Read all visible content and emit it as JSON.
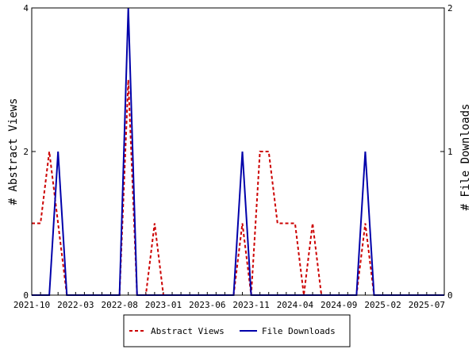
{
  "chart_data": {
    "type": "line",
    "x_months": [
      "2021-10",
      "2021-11",
      "2021-12",
      "2022-01",
      "2022-02",
      "2022-03",
      "2022-04",
      "2022-05",
      "2022-06",
      "2022-07",
      "2022-08",
      "2022-09",
      "2022-10",
      "2022-11",
      "2022-12",
      "2023-01",
      "2023-02",
      "2023-03",
      "2023-04",
      "2023-05",
      "2023-06",
      "2023-07",
      "2023-08",
      "2023-09",
      "2023-10",
      "2023-11",
      "2023-12",
      "2024-01",
      "2024-02",
      "2024-03",
      "2024-04",
      "2024-05",
      "2024-06",
      "2024-07",
      "2024-08",
      "2024-09",
      "2024-10",
      "2024-11",
      "2024-12",
      "2025-01",
      "2025-02",
      "2025-03",
      "2025-04",
      "2025-05",
      "2025-06",
      "2025-07",
      "2025-08",
      "2025-09"
    ],
    "x_tick_labels": [
      "2021-10",
      "2022-03",
      "2022-08",
      "2023-01",
      "2023-06",
      "2023-11",
      "2024-04",
      "2024-09",
      "2025-02",
      "2025-07"
    ],
    "y_left": {
      "label": "# Abstract Views",
      "ticks": [
        "0",
        "2",
        "4"
      ],
      "lim": [
        0,
        4
      ]
    },
    "y_right": {
      "label": "# File Downloads",
      "ticks": [
        "0",
        "1",
        "2"
      ],
      "lim": [
        0,
        2
      ]
    },
    "series": [
      {
        "name": "Abstract Views",
        "axis": "left",
        "color": "#cc0000",
        "style": "dashed",
        "values": [
          1,
          1,
          2,
          1,
          0,
          0,
          0,
          0,
          0,
          0,
          0,
          3,
          0,
          0,
          1,
          0,
          0,
          0,
          0,
          0,
          0,
          0,
          0,
          0,
          1,
          0,
          2,
          2,
          1,
          1,
          1,
          0,
          1,
          0,
          0,
          0,
          0,
          0,
          1,
          0,
          0,
          0,
          0,
          0,
          0,
          0,
          0,
          0
        ]
      },
      {
        "name": "File Downloads",
        "axis": "right",
        "color": "#0000aa",
        "style": "solid",
        "values": [
          0,
          0,
          0,
          1,
          0,
          0,
          0,
          0,
          0,
          0,
          0,
          2,
          0,
          0,
          0,
          0,
          0,
          0,
          0,
          0,
          0,
          0,
          0,
          0,
          1,
          0,
          0,
          0,
          0,
          0,
          0,
          0,
          0,
          0,
          0,
          0,
          0,
          0,
          1,
          0,
          0,
          0,
          0,
          0,
          0,
          0,
          0,
          0
        ]
      }
    ],
    "legend": {
      "position": "bottom",
      "entries": [
        "Abstract Views",
        "File Downloads"
      ]
    }
  }
}
